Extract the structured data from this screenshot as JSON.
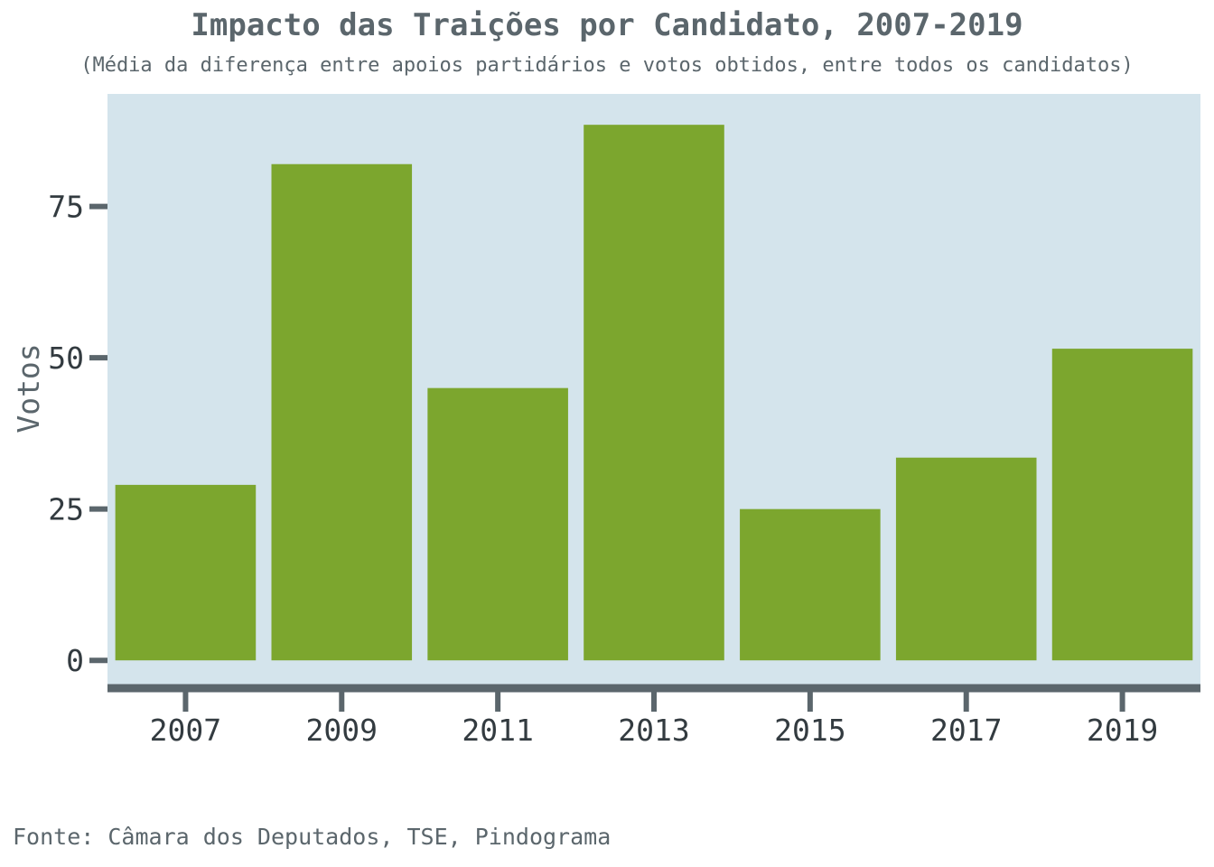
{
  "chart_data": {
    "type": "bar",
    "title": "Impacto das Traições por Candidato, 2007-2019",
    "subtitle": "(Média da diferença entre apoios partidários e votos obtidos, entre todos os candidatos)",
    "xlabel": "",
    "ylabel": "Votos",
    "categories": [
      "2007",
      "2009",
      "2011",
      "2013",
      "2015",
      "2017",
      "2019"
    ],
    "values": [
      29,
      82,
      45,
      88.5,
      25,
      33.5,
      51.5
    ],
    "yticks": [
      0,
      25,
      50,
      75
    ],
    "ylim": [
      -4,
      93.6
    ],
    "xlim": [
      2006,
      2020
    ],
    "grid": false,
    "legend": "none",
    "caption": "Fonte: Câmara dos Deputados, TSE, Pindograma",
    "colors": {
      "bar": "#7ca62e",
      "panel": "#d4e4ec",
      "axis": "#5b666c",
      "text": "#5b666c"
    }
  }
}
